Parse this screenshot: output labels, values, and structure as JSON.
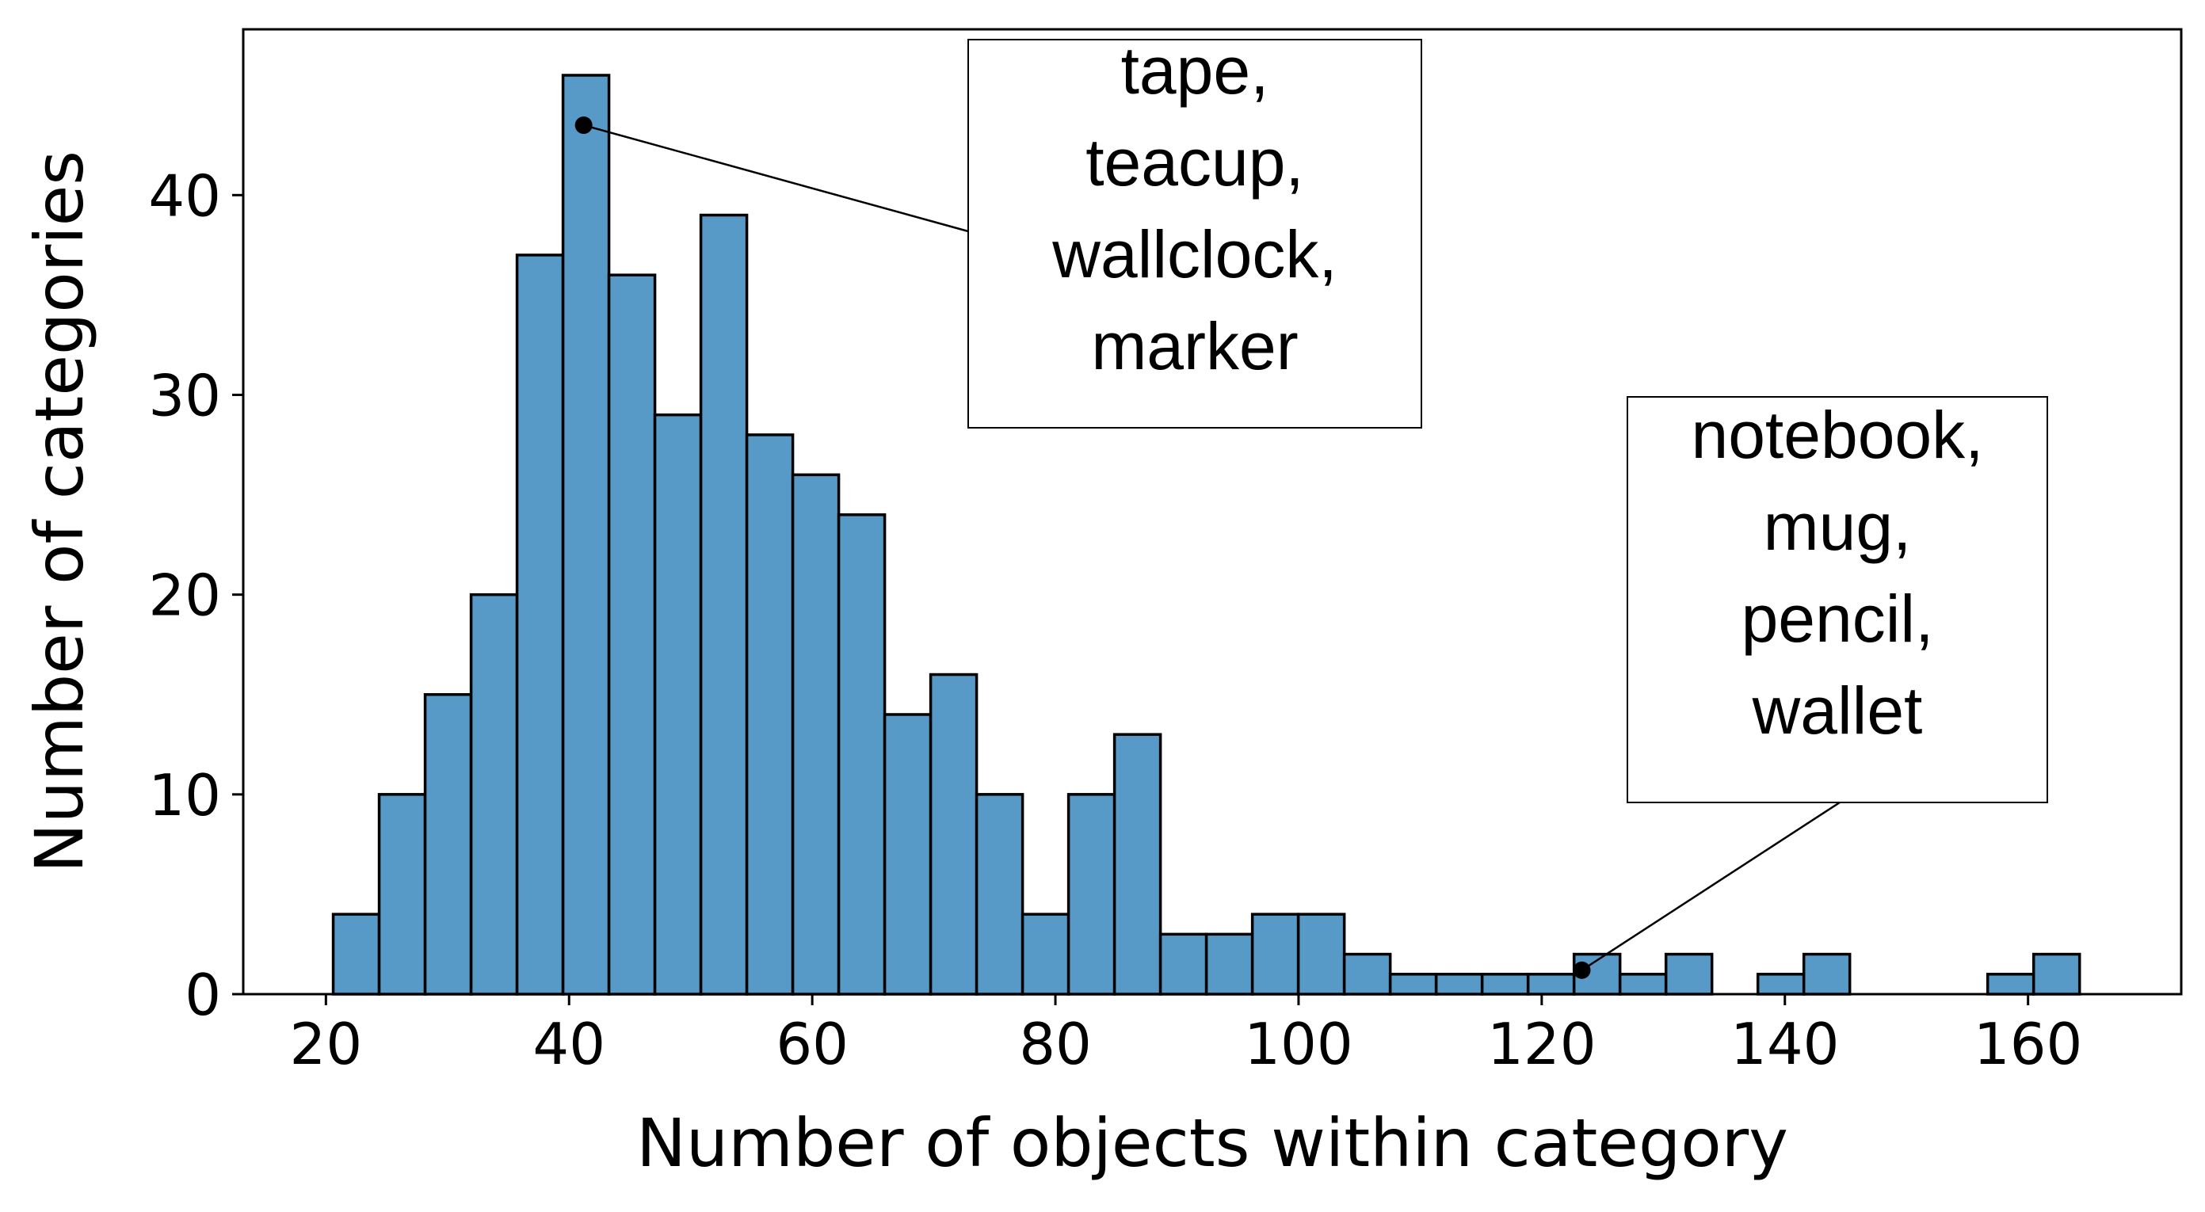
{
  "chart_data": {
    "type": "bar",
    "xlabel": "Number of objects within category",
    "ylabel": "Number of categories",
    "xlim": [
      13.2,
      172.6
    ],
    "ylim": [
      0,
      48.3
    ],
    "xticks": [
      20,
      40,
      60,
      80,
      100,
      120,
      140,
      160
    ],
    "yticks": [
      0,
      10,
      20,
      30,
      40
    ],
    "grid": false,
    "bar_color": "#5799C7",
    "edge_color": "#000000",
    "bin_width": 3.78,
    "bins": [
      {
        "x0": 20.6,
        "count": 4
      },
      {
        "x0": 24.38,
        "count": 10
      },
      {
        "x0": 28.16,
        "count": 15
      },
      {
        "x0": 31.94,
        "count": 20
      },
      {
        "x0": 35.72,
        "count": 37
      },
      {
        "x0": 39.5,
        "count": 46
      },
      {
        "x0": 43.28,
        "count": 36
      },
      {
        "x0": 47.06,
        "count": 29
      },
      {
        "x0": 50.84,
        "count": 39
      },
      {
        "x0": 54.62,
        "count": 28
      },
      {
        "x0": 58.4,
        "count": 26
      },
      {
        "x0": 62.18,
        "count": 24
      },
      {
        "x0": 65.96,
        "count": 14
      },
      {
        "x0": 69.74,
        "count": 16
      },
      {
        "x0": 73.52,
        "count": 10
      },
      {
        "x0": 77.3,
        "count": 4
      },
      {
        "x0": 81.08,
        "count": 10
      },
      {
        "x0": 84.86,
        "count": 13
      },
      {
        "x0": 88.64,
        "count": 3
      },
      {
        "x0": 92.42,
        "count": 3
      },
      {
        "x0": 96.2,
        "count": 4
      },
      {
        "x0": 99.98,
        "count": 4
      },
      {
        "x0": 103.76,
        "count": 2
      },
      {
        "x0": 107.54,
        "count": 1
      },
      {
        "x0": 111.32,
        "count": 1
      },
      {
        "x0": 115.1,
        "count": 1
      },
      {
        "x0": 118.88,
        "count": 1
      },
      {
        "x0": 122.66,
        "count": 2
      },
      {
        "x0": 126.44,
        "count": 1
      },
      {
        "x0": 130.22,
        "count": 2
      },
      {
        "x0": 134.0,
        "count": 0
      },
      {
        "x0": 137.78,
        "count": 1
      },
      {
        "x0": 141.56,
        "count": 2
      },
      {
        "x0": 145.34,
        "count": 0
      },
      {
        "x0": 149.12,
        "count": 0
      },
      {
        "x0": 152.9,
        "count": 0
      },
      {
        "x0": 156.68,
        "count": 1
      },
      {
        "x0": 160.46,
        "count": 2
      }
    ],
    "annotations": [
      {
        "lines": [
          "tape,",
          "teacup,",
          "wallclock,",
          "marker"
        ],
        "point": [
          41.2,
          43.5
        ]
      },
      {
        "lines": [
          "notebook,",
          "mug,",
          "pencil,",
          "wallet"
        ],
        "point": [
          123.3,
          1.2
        ]
      }
    ]
  }
}
